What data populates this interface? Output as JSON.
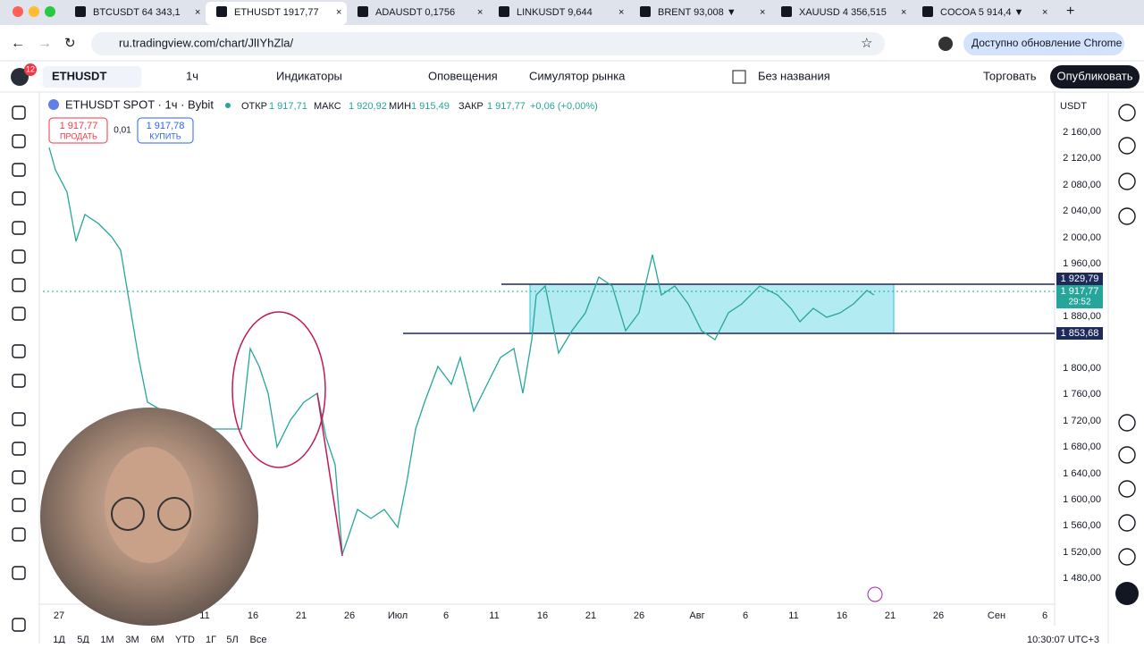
{
  "browser": {
    "tabs": [
      "BTCUSDT 64 343,1",
      "ETHUSDT 1917,77",
      "ADAUSDT 0,1756",
      "LINKUSDT 9,644",
      "BRENT 93,008 ▼",
      "XAUUSD 4 356,515",
      "COCOA 5 914,4 ▼"
    ],
    "url": "ru.tradingview.com/chart/JlIYhZla/",
    "update": "Доступно обновление Chrome",
    "badge": "12"
  },
  "toolbar": {
    "symbol": "ETHUSDT",
    "interval": "1ч",
    "indicators": "Индикаторы",
    "alerts": "Оповещения",
    "replay": "Симулятор рынка",
    "layout": "Без названия",
    "trade": "Торговать",
    "publish": "Опубликовать"
  },
  "legend": {
    "title": "ETHUSDT SPOT · 1ч · Bybit",
    "open_label": "ОТКР",
    "open": "1 917,71",
    "high_label": "МАКС",
    "high": "1 920,92",
    "low_label": "МИН",
    "low": "1 915,49",
    "close_label": "ЗАКР",
    "close": "1 917,77",
    "change": "+0,06 (+0,00%)"
  },
  "trade_panel": {
    "sell_price": "1 917,77",
    "sell": "ПРОДАТЬ",
    "spread": "0,01",
    "buy_price": "1 917,78",
    "buy": "КУПИТЬ"
  },
  "price_axis": {
    "currency": "USDT",
    "labels": [
      "2 160,00",
      "2 120,00",
      "2 080,00",
      "2 040,00",
      "2 000,00",
      "1 960,00",
      "1 880,00",
      "1 800,00",
      "1 760,00",
      "1 720,00",
      "1 680,00",
      "1 640,00",
      "1 600,00",
      "1 560,00",
      "1 520,00",
      "1 480,00"
    ],
    "upper_level": "1 929,79",
    "last_price": "1 917,77",
    "countdown": "29:52",
    "lower_level": "1 853,68"
  },
  "time_axis": {
    "labels": [
      "27",
      "11",
      "16",
      "21",
      "26",
      "Июл",
      "6",
      "11",
      "16",
      "21",
      "26",
      "Авг",
      "6",
      "11",
      "16",
      "21",
      "26",
      "Сен",
      "6"
    ]
  },
  "bottom_bar": {
    "ranges": [
      "1Д",
      "5Д",
      "1М",
      "3М",
      "6М",
      "YTD",
      "1Г",
      "5Л",
      "Все"
    ],
    "clock": "10:30:07 UTC+3"
  }
}
